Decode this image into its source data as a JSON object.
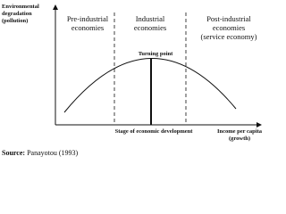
{
  "y_axis_label": [
    "Environmental",
    "degradation",
    "(pollution)"
  ],
  "x_axis_label": [
    "Income per capita",
    "(growth)"
  ],
  "stages": [
    {
      "lines": [
        "Pre-industrial",
        "economies"
      ]
    },
    {
      "lines": [
        "Industrial",
        "economies"
      ]
    },
    {
      "lines": [
        "Post-industrial",
        "economies",
        "(service economy)"
      ]
    }
  ],
  "turning_point": "Turning point",
  "stage_label": "Stage of economic development",
  "source": {
    "label": "Source:",
    "text": "Panayotou (1993)"
  }
}
